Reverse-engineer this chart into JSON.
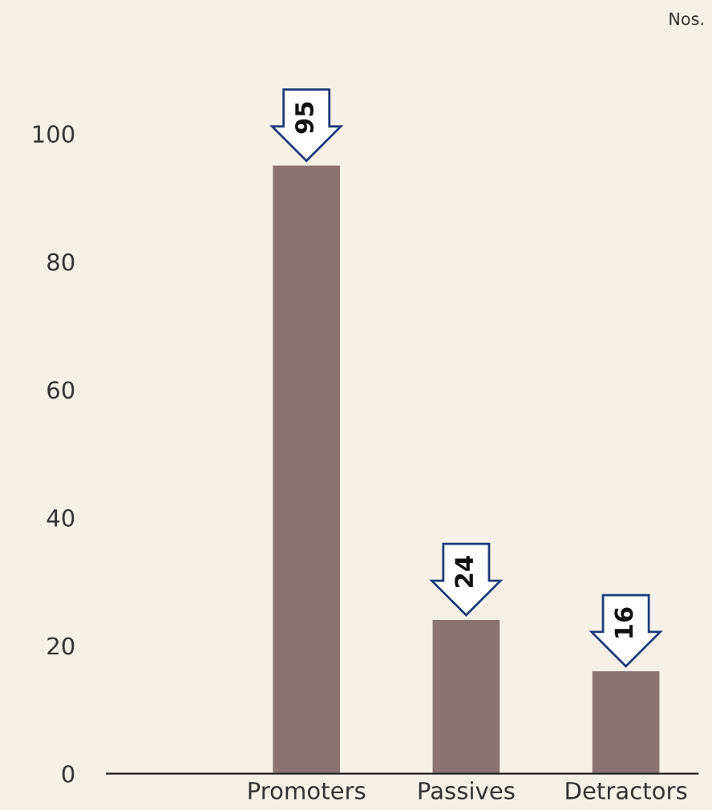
{
  "chart_data": {
    "type": "bar",
    "categories": [
      "Promoters",
      "Passives",
      "Detractors"
    ],
    "values": [
      95,
      24,
      16
    ],
    "color": "#8c7373",
    "ylim": [
      0,
      100
    ],
    "yticks": [
      0,
      20,
      40,
      60,
      80,
      100
    ],
    "grid": false,
    "data_labels": true,
    "annotations": [
      "Nos."
    ]
  }
}
